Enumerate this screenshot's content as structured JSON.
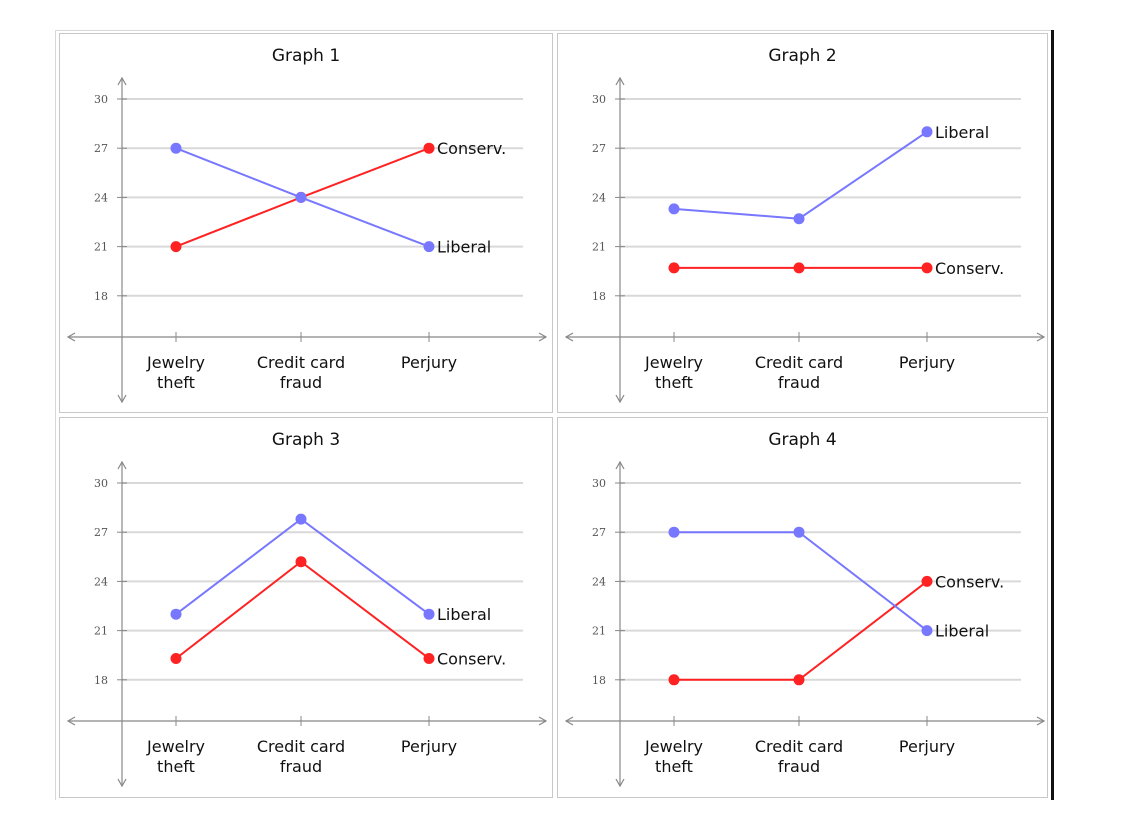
{
  "chart_data": [
    {
      "type": "line",
      "title": "Graph 1",
      "categories": [
        "Jewelry theft",
        "Credit card fraud",
        "Perjury"
      ],
      "category_lines": [
        [
          "Jewelry",
          "theft"
        ],
        [
          "Credit card",
          "fraud"
        ],
        [
          "Perjury"
        ]
      ],
      "yticks": [
        18,
        21,
        24,
        27,
        30
      ],
      "ylim": [
        15.5,
        31.5
      ],
      "grid": true,
      "series": [
        {
          "name": "Conserv.",
          "values": [
            21,
            24,
            27
          ],
          "color": "#ff2222"
        },
        {
          "name": "Liberal",
          "values": [
            27,
            24,
            21
          ],
          "color": "#7777ff"
        }
      ]
    },
    {
      "type": "line",
      "title": "Graph 2",
      "categories": [
        "Jewelry theft",
        "Credit card fraud",
        "Perjury"
      ],
      "category_lines": [
        [
          "Jewelry",
          "theft"
        ],
        [
          "Credit card",
          "fraud"
        ],
        [
          "Perjury"
        ]
      ],
      "yticks": [
        18,
        21,
        24,
        27,
        30
      ],
      "ylim": [
        15.5,
        31.5
      ],
      "grid": true,
      "series": [
        {
          "name": "Liberal",
          "values": [
            23.3,
            22.7,
            28
          ],
          "color": "#7777ff"
        },
        {
          "name": "Conserv.",
          "values": [
            19.7,
            19.7,
            19.7
          ],
          "color": "#ff2222"
        }
      ]
    },
    {
      "type": "line",
      "title": "Graph 3",
      "categories": [
        "Jewelry theft",
        "Credit card fraud",
        "Perjury"
      ],
      "category_lines": [
        [
          "Jewelry",
          "theft"
        ],
        [
          "Credit card",
          "fraud"
        ],
        [
          "Perjury"
        ]
      ],
      "yticks": [
        18,
        21,
        24,
        27,
        30
      ],
      "ylim": [
        15.5,
        31.5
      ],
      "grid": true,
      "series": [
        {
          "name": "Liberal",
          "values": [
            22,
            27.8,
            22
          ],
          "color": "#7777ff"
        },
        {
          "name": "Conserv.",
          "values": [
            19.3,
            25.2,
            19.3
          ],
          "color": "#ff2222"
        }
      ]
    },
    {
      "type": "line",
      "title": "Graph 4",
      "categories": [
        "Jewelry theft",
        "Credit card fraud",
        "Perjury"
      ],
      "category_lines": [
        [
          "Jewelry",
          "theft"
        ],
        [
          "Credit card",
          "fraud"
        ],
        [
          "Perjury"
        ]
      ],
      "yticks": [
        18,
        21,
        24,
        27,
        30
      ],
      "ylim": [
        15.5,
        31.5
      ],
      "grid": true,
      "series": [
        {
          "name": "Conserv.",
          "values": [
            18,
            18,
            24
          ],
          "color": "#ff2222"
        },
        {
          "name": "Liberal",
          "values": [
            27,
            27,
            21
          ],
          "color": "#7777ff"
        }
      ]
    }
  ]
}
